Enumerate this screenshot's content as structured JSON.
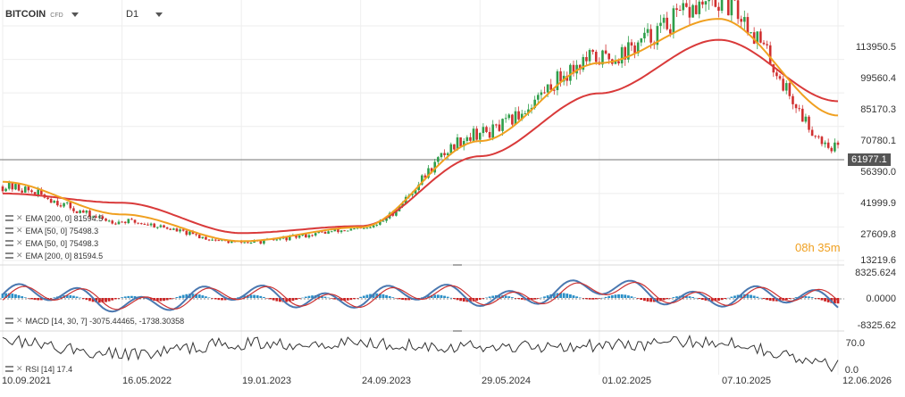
{
  "header": {
    "symbol": "BITCOIN",
    "symbol_type": "CFD",
    "timeframe": "D1"
  },
  "legend": [
    "EMA [200, 0] 81594.5",
    "EMA [50, 0] 75498.3",
    "EMA [50, 0] 75498.3",
    "EMA [200, 0] 81594.5"
  ],
  "macd_label": "MACD [14, 30, 7] -3075.44465, -1738.30358",
  "rsi_label": "RSI [14] 17.4",
  "price_axis": [
    "113950.5",
    "99560.4",
    "85170.3",
    "70780.1",
    "56390.0",
    "41999.9",
    "27609.8",
    "13219.6"
  ],
  "macd_axis": [
    "8325.624",
    "0.0000",
    "-8325.62"
  ],
  "rsi_axis": [
    "70.0",
    "0.0"
  ],
  "current_price": "61977.1",
  "countdown": "08h 35m",
  "x_axis": [
    "10.09.2021",
    "16.05.2022",
    "19.01.2023",
    "24.09.2023",
    "29.05.2024",
    "01.02.2025",
    "07.10.2025",
    "12.06.2026"
  ],
  "colors": {
    "ema50": "#f0a020",
    "ema200": "#d93a3a",
    "candle_up": "#2e9e4a",
    "candle_down": "#d03030",
    "macd_line": "#4a78b0",
    "macd_signal": "#cc3333",
    "hist_pos": "#2a8fc7",
    "hist_neg": "#cc2222",
    "rsi": "#333333"
  },
  "chart_data": [
    {
      "type": "line",
      "title": "BITCOIN",
      "x": [
        "10.09.2021",
        "16.05.2022",
        "19.01.2023",
        "24.09.2023",
        "29.05.2024",
        "01.02.2025",
        "07.10.2025",
        "12.06.2026"
      ],
      "series": [
        {
          "name": "BITCOIN",
          "values": [
            45000,
            30000,
            21000,
            26500,
            68000,
            100000,
            124000,
            62000
          ]
        },
        {
          "name": "EMA [50, 0]",
          "values": [
            47000,
            33000,
            21500,
            27500,
            64500,
            98000,
            117000,
            75498.3
          ]
        },
        {
          "name": "EMA [200, 0]",
          "values": [
            42000,
            38000,
            25000,
            28000,
            58000,
            85000,
            108000,
            81594.5
          ]
        }
      ],
      "ylim": [
        13219.6,
        122000
      ]
    },
    {
      "type": "line",
      "title": "MACD [14, 30, 7]",
      "series": [
        {
          "name": "MACD",
          "values": [
            3000,
            -2500,
            1500,
            1000,
            2500,
            6500,
            2000,
            -3075.44465
          ]
        },
        {
          "name": "Signal",
          "values": [
            2500,
            -2000,
            1200,
            800,
            2000,
            5500,
            2500,
            -1738.30358
          ]
        }
      ],
      "ylim": [
        -8325.62,
        8325.624
      ]
    },
    {
      "type": "line",
      "title": "RSI [14]",
      "series": [
        {
          "name": "RSI",
          "values": [
            62,
            38,
            58,
            60,
            52,
            55,
            62,
            17.4
          ]
        }
      ],
      "ylim": [
        0,
        70
      ]
    }
  ]
}
